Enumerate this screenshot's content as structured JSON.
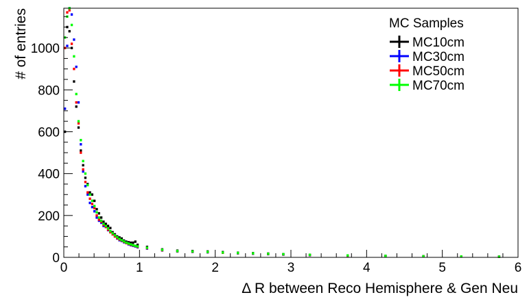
{
  "chart_data": {
    "type": "histogram",
    "xlabel": "Δ R between Reco Hemisphere & Gen Neu",
    "ylabel": "# of entries",
    "xlim": [
      0,
      6
    ],
    "ylim": [
      0,
      1190
    ],
    "x_ticks": [
      "0",
      "1",
      "2",
      "3",
      "4",
      "5",
      "6"
    ],
    "y_ticks": [
      "0",
      "200",
      "400",
      "600",
      "800",
      "1000"
    ],
    "bin_width": 0.03,
    "grid": false,
    "legend": {
      "title": "MC Samples",
      "placement": "top-right"
    },
    "series": [
      {
        "name": "MC10cm",
        "color": "#000000",
        "x": [
          0.015,
          0.045,
          0.075,
          0.105,
          0.135,
          0.165,
          0.195,
          0.225,
          0.255,
          0.285,
          0.315,
          0.345,
          0.375,
          0.405,
          0.435,
          0.465,
          0.495,
          0.525,
          0.555,
          0.585,
          0.615,
          0.645,
          0.675,
          0.705,
          0.735,
          0.765,
          0.795,
          0.825,
          0.855,
          0.885,
          0.915,
          0.945,
          0.975,
          1.1,
          1.3,
          1.5,
          1.7,
          1.9,
          2.1,
          2.3,
          2.5,
          2.7,
          2.9,
          3.25,
          3.75,
          4.25,
          4.75,
          5.25,
          5.75
        ],
        "values": [
          600,
          1100,
          1080,
          1000,
          840,
          720,
          620,
          510,
          440,
          380,
          350,
          310,
          300,
          270,
          230,
          210,
          190,
          170,
          160,
          150,
          140,
          120,
          110,
          100,
          95,
          90,
          80,
          75,
          72,
          70,
          70,
          75,
          60,
          50,
          38,
          32,
          30,
          28,
          25,
          22,
          20,
          18,
          15,
          12,
          9,
          7,
          5,
          4,
          3
        ]
      },
      {
        "name": "MC30cm",
        "color": "#0000ff",
        "x": [
          0.015,
          0.045,
          0.075,
          0.105,
          0.135,
          0.165,
          0.195,
          0.225,
          0.255,
          0.285,
          0.315,
          0.345,
          0.375,
          0.405,
          0.435,
          0.465,
          0.495,
          0.525,
          0.555,
          0.585,
          0.615,
          0.645,
          0.675,
          0.705,
          0.735,
          0.765,
          0.795,
          0.825,
          0.855,
          0.885,
          0.915,
          0.945,
          0.975,
          1.1,
          1.3,
          1.5,
          1.7,
          1.9,
          2.1,
          2.3,
          2.5,
          2.7,
          2.9,
          3.25,
          3.75,
          4.25,
          4.75,
          5.25,
          5.75
        ],
        "values": [
          710,
          1010,
          1190,
          1160,
          1040,
          910,
          740,
          540,
          410,
          340,
          300,
          260,
          240,
          220,
          190,
          175,
          165,
          150,
          145,
          130,
          120,
          110,
          100,
          90,
          82,
          78,
          72,
          68,
          62,
          58,
          55,
          52,
          48,
          42,
          33,
          28,
          26,
          24,
          22,
          19,
          17,
          15,
          13,
          10,
          8,
          6,
          5,
          4,
          3
        ]
      },
      {
        "name": "MC50cm",
        "color": "#ff0000",
        "x": [
          0.015,
          0.045,
          0.075,
          0.105,
          0.135,
          0.165,
          0.195,
          0.225,
          0.255,
          0.285,
          0.315,
          0.345,
          0.375,
          0.405,
          0.435,
          0.465,
          0.495,
          0.525,
          0.555,
          0.585,
          0.615,
          0.645,
          0.675,
          0.705,
          0.735,
          0.765,
          0.795,
          0.825,
          0.855,
          0.885,
          0.915,
          0.945,
          0.975,
          1.1,
          1.3,
          1.5,
          1.7,
          1.9,
          2.1,
          2.3,
          2.5,
          2.7,
          2.9,
          3.25,
          3.75,
          4.25,
          4.75,
          5.25,
          5.75
        ],
        "values": [
          1000,
          1170,
          1180,
          1020,
          900,
          740,
          640,
          500,
          420,
          360,
          310,
          280,
          255,
          235,
          200,
          180,
          170,
          155,
          145,
          132,
          120,
          110,
          100,
          92,
          85,
          80,
          74,
          68,
          64,
          60,
          57,
          54,
          50,
          44,
          34,
          29,
          27,
          25,
          22,
          20,
          18,
          16,
          14,
          11,
          8,
          6,
          5,
          4,
          3
        ]
      },
      {
        "name": "MC70cm",
        "color": "#00ff00",
        "x": [
          0.015,
          0.045,
          0.075,
          0.105,
          0.135,
          0.165,
          0.195,
          0.225,
          0.255,
          0.285,
          0.315,
          0.345,
          0.375,
          0.405,
          0.435,
          0.465,
          0.495,
          0.525,
          0.555,
          0.585,
          0.615,
          0.645,
          0.675,
          0.705,
          0.735,
          0.765,
          0.795,
          0.825,
          0.855,
          0.885,
          0.915,
          0.945,
          0.975,
          1.1,
          1.3,
          1.5,
          1.7,
          1.9,
          2.1,
          2.3,
          2.5,
          2.7,
          2.9,
          3.25,
          3.75,
          4.25,
          4.75,
          5.25,
          5.75
        ],
        "values": [
          1050,
          1150,
          1190,
          1110,
          960,
          780,
          650,
          560,
          460,
          400,
          345,
          300,
          270,
          245,
          215,
          190,
          175,
          160,
          150,
          138,
          125,
          115,
          105,
          96,
          88,
          82,
          76,
          70,
          66,
          62,
          58,
          55,
          52,
          46,
          36,
          30,
          28,
          26,
          23,
          21,
          19,
          17,
          15,
          12,
          9,
          7,
          5,
          4,
          3
        ]
      }
    ]
  }
}
